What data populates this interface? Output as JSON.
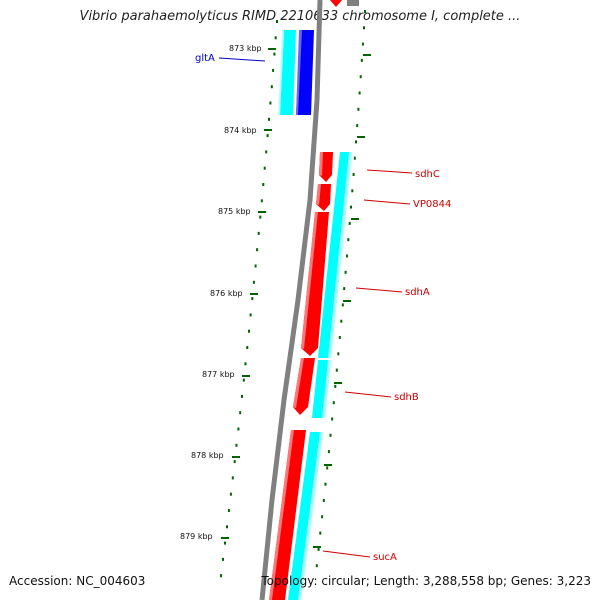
{
  "title": "Vibrio parahaemolyticus RIMD 2210633 chromosome I, complete ...",
  "accession_text": "Accession: NC_004603",
  "topology_text": "Topology: circular; Length: 3,288,558 bp; Genes: 3,223",
  "colors": {
    "backbone": "#808080",
    "cds_forward": "#ff0000",
    "cds_reverse": "#0000ff",
    "orf": "#00ffff",
    "tick": "#006400",
    "label_red": "#cc0000",
    "label_blue": "#0000cc"
  },
  "scale_labels": [
    "873 kbp",
    "874 kbp",
    "875 kbp",
    "876 kbp",
    "877 kbp",
    "878 kbp",
    "879 kbp"
  ],
  "genes": [
    {
      "name": "gltA",
      "strand": "reverse",
      "color": "blue"
    },
    {
      "name": "sdhC",
      "strand": "forward",
      "color": "red"
    },
    {
      "name": "VP0844",
      "strand": "forward",
      "color": "red"
    },
    {
      "name": "sdhA",
      "strand": "forward",
      "color": "red"
    },
    {
      "name": "sdhB",
      "strand": "forward",
      "color": "red"
    },
    {
      "name": "sucA",
      "strand": "forward",
      "color": "red"
    }
  ]
}
